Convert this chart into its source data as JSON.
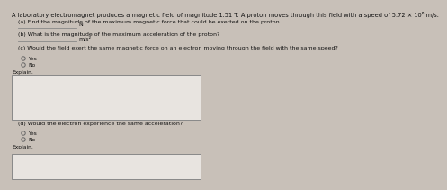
{
  "bg_color": "#c8c0b8",
  "header_text": "A laboratory electromagnet produces a magnetic field of magnitude 1.51 T. A proton moves through this field with a speed of 5.72 × 10⁶ m/s.",
  "part_a_label": "(a) Find the magnitude of the maximum magnetic force that could be exerted on the proton.",
  "part_a_unit": "N",
  "part_b_label": "(b) What is the magnitude of the maximum acceleration of the proton?",
  "part_b_unit": "m/s²",
  "part_c_label": "(c) Would the field exert the same magnetic force on an electron moving through the field with the same speed?",
  "yes_label": "Yes",
  "no_label": "No",
  "explain_label": "Explain.",
  "part_d_label": "(d) Would the electron experience the same acceleration?",
  "yes_label2": "Yes",
  "no_label2": "No",
  "explain_label2": "Explain.",
  "input_box_color": "#e8e4e0",
  "input_box_border": "#888888",
  "text_color": "#111111",
  "radio_color": "#666666",
  "underline_color": "#888888",
  "font_size_header": 4.8,
  "font_size_body": 4.5,
  "font_size_small": 4.3
}
